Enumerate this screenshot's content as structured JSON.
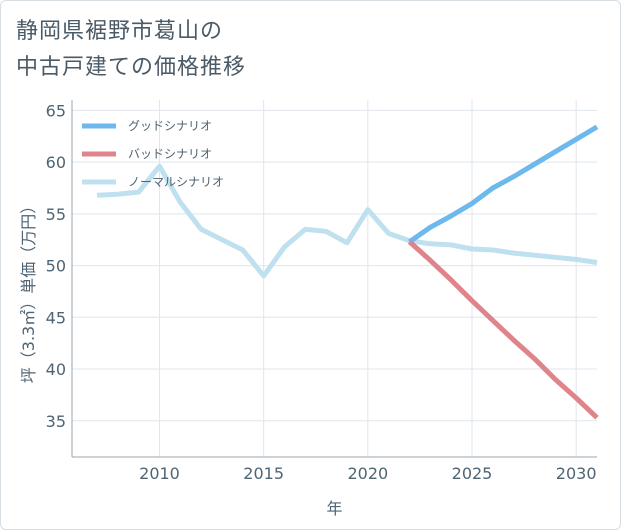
{
  "title_line1": "静岡県裾野市葛山の",
  "title_line2": "中古戸建ての価格推移",
  "chart_data": {
    "type": "line",
    "title": "静岡県裾野市葛山の中古戸建ての価格推移",
    "xlabel": "年",
    "ylabel": "坪（3.3㎡）単価（万円）",
    "xlim": [
      2005.8,
      2031
    ],
    "ylim": [
      31.5,
      66
    ],
    "xticks": [
      2010,
      2015,
      2020,
      2025,
      2030
    ],
    "yticks": [
      35,
      40,
      45,
      50,
      55,
      60,
      65
    ],
    "grid": true,
    "legend_position": "top-left",
    "series": [
      {
        "name": "グッドシナリオ",
        "color": "#6db8ec",
        "x": [
          2022,
          2023,
          2024,
          2025,
          2026,
          2027,
          2028,
          2029,
          2030,
          2031
        ],
        "y": [
          52.3,
          53.7,
          54.8,
          56.0,
          57.5,
          58.6,
          59.8,
          61.0,
          62.2,
          63.4
        ]
      },
      {
        "name": "バッドシナリオ",
        "color": "#e0848c",
        "x": [
          2022,
          2023,
          2024,
          2025,
          2026,
          2027,
          2028,
          2029,
          2030,
          2031
        ],
        "y": [
          52.3,
          50.5,
          48.6,
          46.6,
          44.7,
          42.8,
          41.0,
          39.0,
          37.2,
          35.3
        ]
      },
      {
        "name": "ノーマルシナリオ",
        "color": "#bfe0ef",
        "x": [
          2007,
          2008,
          2009,
          2010,
          2011,
          2012,
          2013,
          2014,
          2015,
          2016,
          2017,
          2018,
          2019,
          2020,
          2021,
          2022,
          2023,
          2024,
          2025,
          2026,
          2027,
          2028,
          2029,
          2030,
          2031
        ],
        "y": [
          56.8,
          56.9,
          57.1,
          59.6,
          56.1,
          53.5,
          52.5,
          51.5,
          49.0,
          51.8,
          53.5,
          53.3,
          52.2,
          55.4,
          53.1,
          52.4,
          52.1,
          52.0,
          51.6,
          51.5,
          51.2,
          51.0,
          50.8,
          50.6,
          50.3
        ]
      }
    ]
  }
}
